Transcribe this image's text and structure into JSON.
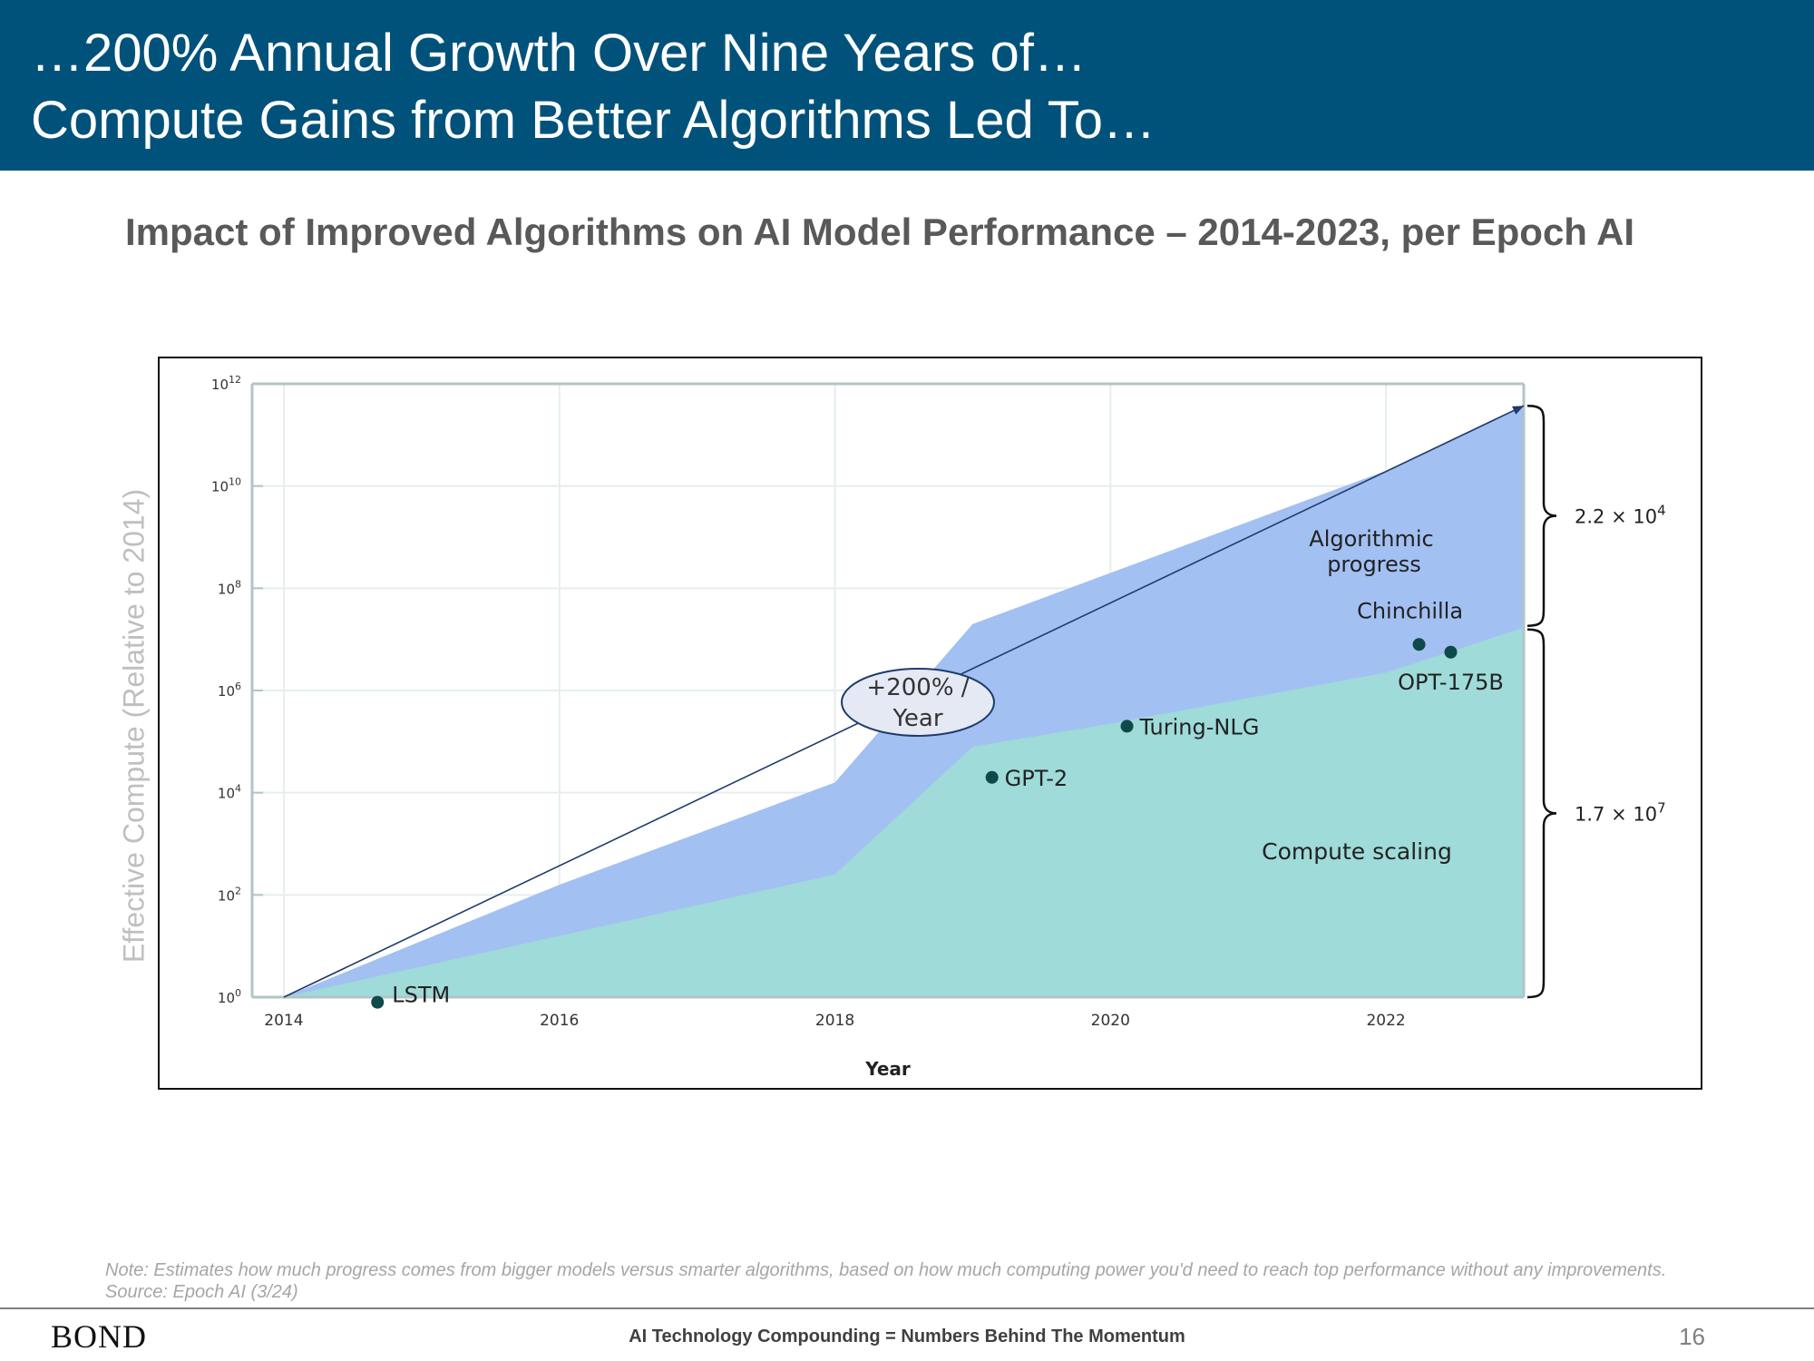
{
  "header": {
    "line1": "…200% Annual Growth Over Nine Years of…",
    "line2": "Compute Gains from Better Algorithms Led To…"
  },
  "subtitle": "Impact of Improved Algorithms on AI Model Performance – 2014-2023, per Epoch AI",
  "chart_data": {
    "type": "area",
    "xlabel": "Year",
    "ylabel": "Effective Compute (Relative to 2014)",
    "y_scale": "log10",
    "xlim": [
      2013.77,
      2023.0
    ],
    "ylim_exponents": [
      0,
      12
    ],
    "x_ticks": [
      "2014",
      "2016",
      "2018",
      "2020",
      "2022"
    ],
    "y_ticks": [
      {
        "base": "10",
        "exp": "0"
      },
      {
        "base": "10",
        "exp": "2"
      },
      {
        "base": "10",
        "exp": "4"
      },
      {
        "base": "10",
        "exp": "6"
      },
      {
        "base": "10",
        "exp": "8"
      },
      {
        "base": "10",
        "exp": "10"
      },
      {
        "base": "10",
        "exp": "12"
      }
    ],
    "grid": true,
    "series": [
      {
        "name": "Compute scaling",
        "color": "#9edbd9",
        "points": [
          [
            2014.0,
            0
          ],
          [
            2016.0,
            1.2
          ],
          [
            2018.0,
            2.4
          ],
          [
            2019.0,
            4.9
          ],
          [
            2020.0,
            5.35
          ],
          [
            2021.0,
            5.85
          ],
          [
            2022.0,
            6.35
          ],
          [
            2023.0,
            7.23
          ]
        ]
      },
      {
        "name": "Algorithmic progress",
        "color": "#a3c0f2",
        "points": [
          [
            2014.0,
            0
          ],
          [
            2016.0,
            2.2
          ],
          [
            2018.0,
            4.2
          ],
          [
            2019.0,
            7.3
          ],
          [
            2020.0,
            8.3
          ],
          [
            2021.0,
            9.3
          ],
          [
            2022.0,
            10.3
          ],
          [
            2023.0,
            11.57
          ]
        ]
      }
    ],
    "trend": {
      "from": [
        2014.0,
        0
      ],
      "to": [
        2023.0,
        11.57
      ],
      "label_line1": "+200% /",
      "label_line2": "Year",
      "color": "#1f3b6b"
    },
    "models": [
      {
        "name": "LSTM",
        "x": 2014.68,
        "y": -0.1
      },
      {
        "name": "GPT-2",
        "x": 2019.14,
        "y": 4.3
      },
      {
        "name": "Turing-NLG",
        "x": 2020.12,
        "y": 5.3
      },
      {
        "name": "Chinchilla",
        "x": 2022.24,
        "y": 6.9
      },
      {
        "name": "OPT-175B",
        "x": 2022.47,
        "y": 6.75
      }
    ],
    "region_labels": [
      {
        "line1": "Algorithmic",
        "line2": "progress"
      },
      {
        "line1": "Compute scaling",
        "line2": ""
      }
    ],
    "braces": [
      {
        "base": "2.2 × 10",
        "exp": "4",
        "from": 7.23,
        "to": 11.57
      },
      {
        "base": "1.7 × 10",
        "exp": "7",
        "from": 0,
        "to": 7.23
      }
    ],
    "marker_color": "#0e4a4a"
  },
  "note": "Note: Estimates how much progress comes from bigger models versus smarter algorithms, based on how much computing power you'd need to reach top performance without any improvements. Source: Epoch AI (3/24)",
  "footer": {
    "logo": "BOND",
    "center_text": "AI Technology Compounding = Numbers Behind The Momentum",
    "page_number": "16"
  }
}
